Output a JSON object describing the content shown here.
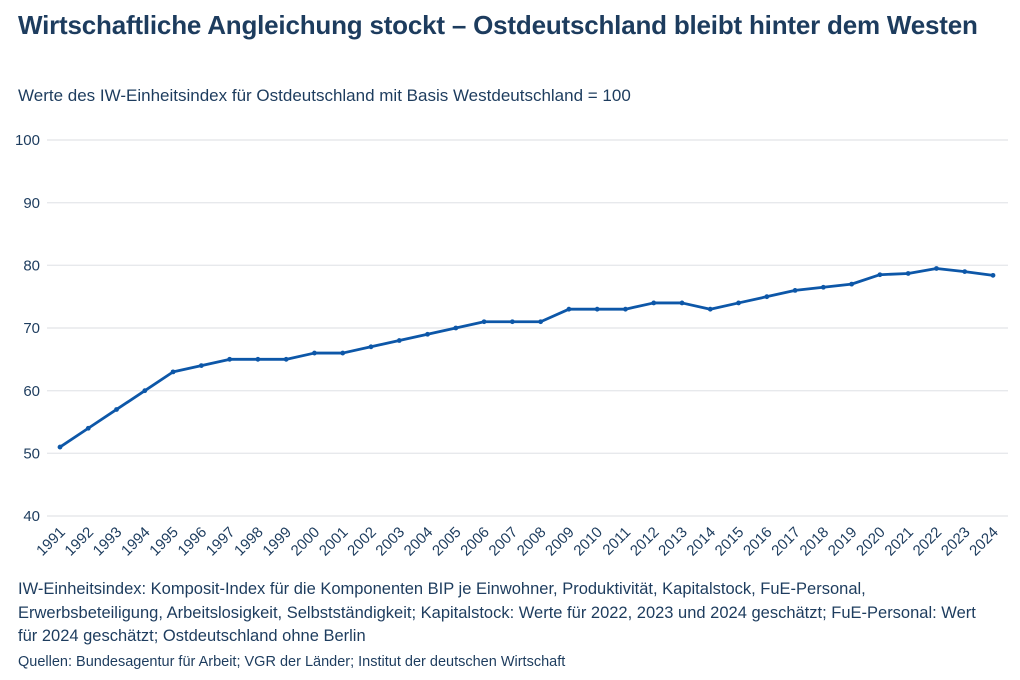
{
  "header": {
    "title": "Wirtschaftliche Angleichung stockt – Ostdeutschland bleibt hinter dem Westen",
    "subtitle": "Werte des IW-Einheitsindex für Ostdeutschland mit Basis Westdeutschland = 100"
  },
  "chart_data": {
    "type": "line",
    "title": "Wirtschaftliche Angleichung stockt – Ostdeutschland bleibt hinter dem Westen",
    "subtitle": "Werte des IW-Einheitsindex für Ostdeutschland mit Basis Westdeutschland = 100",
    "x": [
      1991,
      1992,
      1993,
      1994,
      1995,
      1996,
      1997,
      1998,
      1999,
      2000,
      2001,
      2002,
      2003,
      2004,
      2005,
      2006,
      2007,
      2008,
      2009,
      2010,
      2011,
      2012,
      2013,
      2014,
      2015,
      2016,
      2017,
      2018,
      2019,
      2020,
      2021,
      2022,
      2023,
      2024
    ],
    "series": [
      {
        "name": "IW-Einheitsindex Ostdeutschland (Westdeutschland = 100)",
        "values": [
          51,
          54,
          57,
          60,
          63,
          64,
          65,
          65,
          65,
          66,
          66,
          67,
          68,
          69,
          70,
          71,
          71,
          71,
          73,
          73,
          73,
          74,
          74,
          73,
          74,
          75,
          76,
          76.5,
          77,
          78.5,
          78.7,
          79.5,
          79,
          78.4
        ]
      }
    ],
    "xlabel": "",
    "ylabel": "",
    "ylim": [
      40,
      100
    ],
    "yticks": [
      40,
      50,
      60,
      70,
      80,
      90,
      100
    ],
    "grid": "horizontal",
    "legend": "none",
    "marker": "dot"
  },
  "footnote": "IW-Einheitsindex: Komposit-Index für die Komponenten BIP je Einwohner, Produktivität, Kapitalstock, FuE-Personal, Erwerbsbeteiligung, Arbeitslosigkeit, Selbstständigkeit; Kapitalstock: Werte für 2022, 2023 und 2024 geschätzt; FuE-Personal: Wert für 2024 geschätzt; Ostdeutschland ohne Berlin",
  "source": "Quellen: Bundesagentur für Arbeit; VGR der Länder; Institut der deutschen Wirtschaft",
  "colors": {
    "accent": "#0d57a8",
    "text": "#1d3c5e",
    "grid": "#e7e9ec",
    "background": "#ffffff"
  }
}
